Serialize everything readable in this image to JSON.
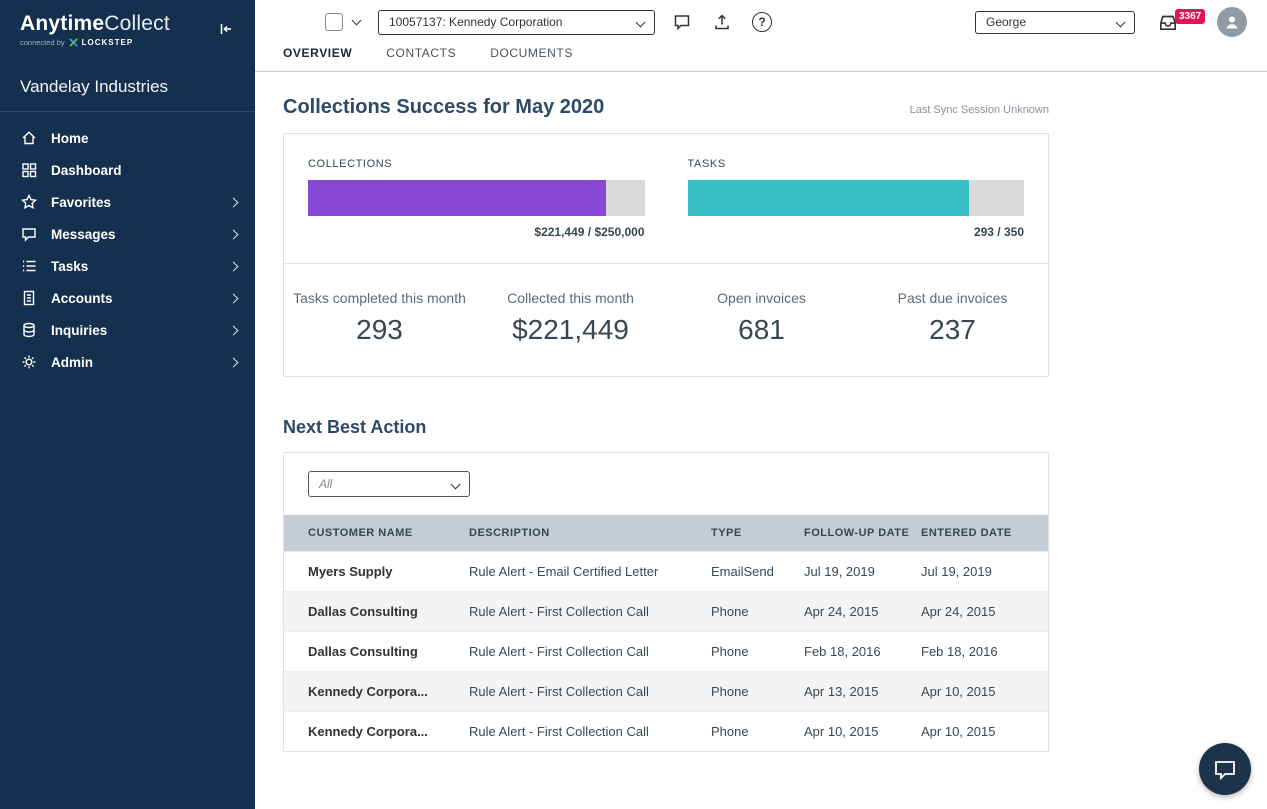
{
  "colors": {
    "sidebar_bg": "#14304e",
    "collections_bar": "#8947d6",
    "tasks_bar": "#38bfc6",
    "badge": "#e8125c",
    "table_header_bg": "#c4cdd5",
    "heading": "#2d4a68"
  },
  "sidebar": {
    "brand": {
      "anytime": "Anytime",
      "collect": "Collect",
      "connected": "connected by",
      "lockstep": "LOCKSTEP"
    },
    "company": "Vandelay Industries",
    "items": [
      {
        "label": "Home",
        "icon": "home-icon",
        "expandable": false
      },
      {
        "label": "Dashboard",
        "icon": "dashboard-icon",
        "expandable": false
      },
      {
        "label": "Favorites",
        "icon": "star-icon",
        "expandable": true
      },
      {
        "label": "Messages",
        "icon": "message-icon",
        "expandable": true
      },
      {
        "label": "Tasks",
        "icon": "list-icon",
        "expandable": true
      },
      {
        "label": "Accounts",
        "icon": "ledger-icon",
        "expandable": true
      },
      {
        "label": "Inquiries",
        "icon": "database-icon",
        "expandable": true
      },
      {
        "label": "Admin",
        "icon": "gear-icon",
        "expandable": true
      }
    ]
  },
  "topbar": {
    "account_select": "10057137: Kennedy Corporation",
    "user_select": "George",
    "inbox_badge": "3367",
    "help_label": "?"
  },
  "tabs": [
    {
      "label": "OVERVIEW",
      "active": true
    },
    {
      "label": "CONTACTS",
      "active": false
    },
    {
      "label": "DOCUMENTS",
      "active": false
    }
  ],
  "main": {
    "title": "Collections Success for May 2020",
    "last_sync": "Last Sync Session Unknown",
    "collections": {
      "label": "COLLECTIONS",
      "value": "$221,449 / $250,000",
      "pct": 88.6
    },
    "tasks": {
      "label": "TASKS",
      "value": "293 / 350",
      "pct": 83.7
    },
    "stats": [
      {
        "label": "Tasks completed this month",
        "value": "293"
      },
      {
        "label": "Collected this month",
        "value": "$221,449"
      },
      {
        "label": "Open invoices",
        "value": "681"
      },
      {
        "label": "Past due invoices",
        "value": "237"
      }
    ],
    "nba": {
      "title": "Next Best Action",
      "filter": "All",
      "columns": [
        "CUSTOMER NAME",
        "DESCRIPTION",
        "TYPE",
        "FOLLOW-UP DATE",
        "ENTERED DATE"
      ],
      "rows": [
        {
          "customer": "Myers Supply",
          "description": "Rule Alert - Email Certified Letter",
          "type": "EmailSend",
          "followup": "Jul 19, 2019",
          "entered": "Jul 19, 2019"
        },
        {
          "customer": "Dallas Consulting",
          "description": "Rule Alert - First Collection Call",
          "type": "Phone",
          "followup": "Apr 24, 2015",
          "entered": "Apr 24, 2015"
        },
        {
          "customer": "Dallas Consulting",
          "description": "Rule Alert - First Collection Call",
          "type": "Phone",
          "followup": "Feb 18, 2016",
          "entered": "Feb 18, 2016"
        },
        {
          "customer": "Kennedy Corpora...",
          "description": "Rule Alert - First Collection Call",
          "type": "Phone",
          "followup": "Apr 13, 2015",
          "entered": "Apr 10, 2015"
        },
        {
          "customer": "Kennedy Corpora...",
          "description": "Rule Alert - First Collection Call",
          "type": "Phone",
          "followup": "Apr 10, 2015",
          "entered": "Apr 10, 2015"
        }
      ]
    }
  }
}
